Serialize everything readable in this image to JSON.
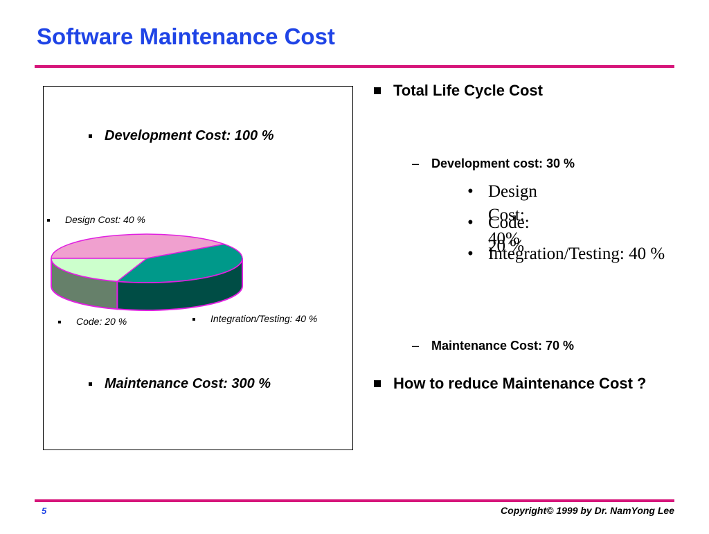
{
  "slide": {
    "title": "Software Maintenance Cost",
    "page_number": "5",
    "copyright": "Copyright© 1999 by Dr. NamYong Lee"
  },
  "colors": {
    "title_blue": "#1f44e6",
    "rule_magenta": "#d6157a",
    "design_slice": "#f0a0cf",
    "code_slice_top": "#ccffcc",
    "code_slice_side": "#66806a",
    "integration_top": "#00998a",
    "integration_side": "#004d45",
    "edge_magenta": "#e020e0"
  },
  "chart": {
    "development_label": "Development  Cost: 100 %",
    "maintenance_label": "Maintenance Cost: 300 %"
  },
  "chart_data": {
    "type": "pie",
    "categories": [
      "Design Cost: 40 %",
      "Code: 20 %",
      "Integration/Testing: 40 %"
    ],
    "values": [
      40,
      20,
      40
    ],
    "title": "Development  Cost: 100 %",
    "xlabel": "",
    "ylabel": "",
    "legend": "labels beside slices"
  },
  "bullets": {
    "total_life_cycle": "Total Life Cycle Cost",
    "development_cost": "Development cost: 30 %",
    "dev_items": [
      "Design Cost: 40%",
      "Code: 20 %",
      "Integration/Testing: 40 %"
    ],
    "maintenance_cost": "Maintenance Cost: 70 %",
    "how_to_reduce": "How to reduce Maintenance Cost ?",
    "dash": "–",
    "dot": "•"
  }
}
